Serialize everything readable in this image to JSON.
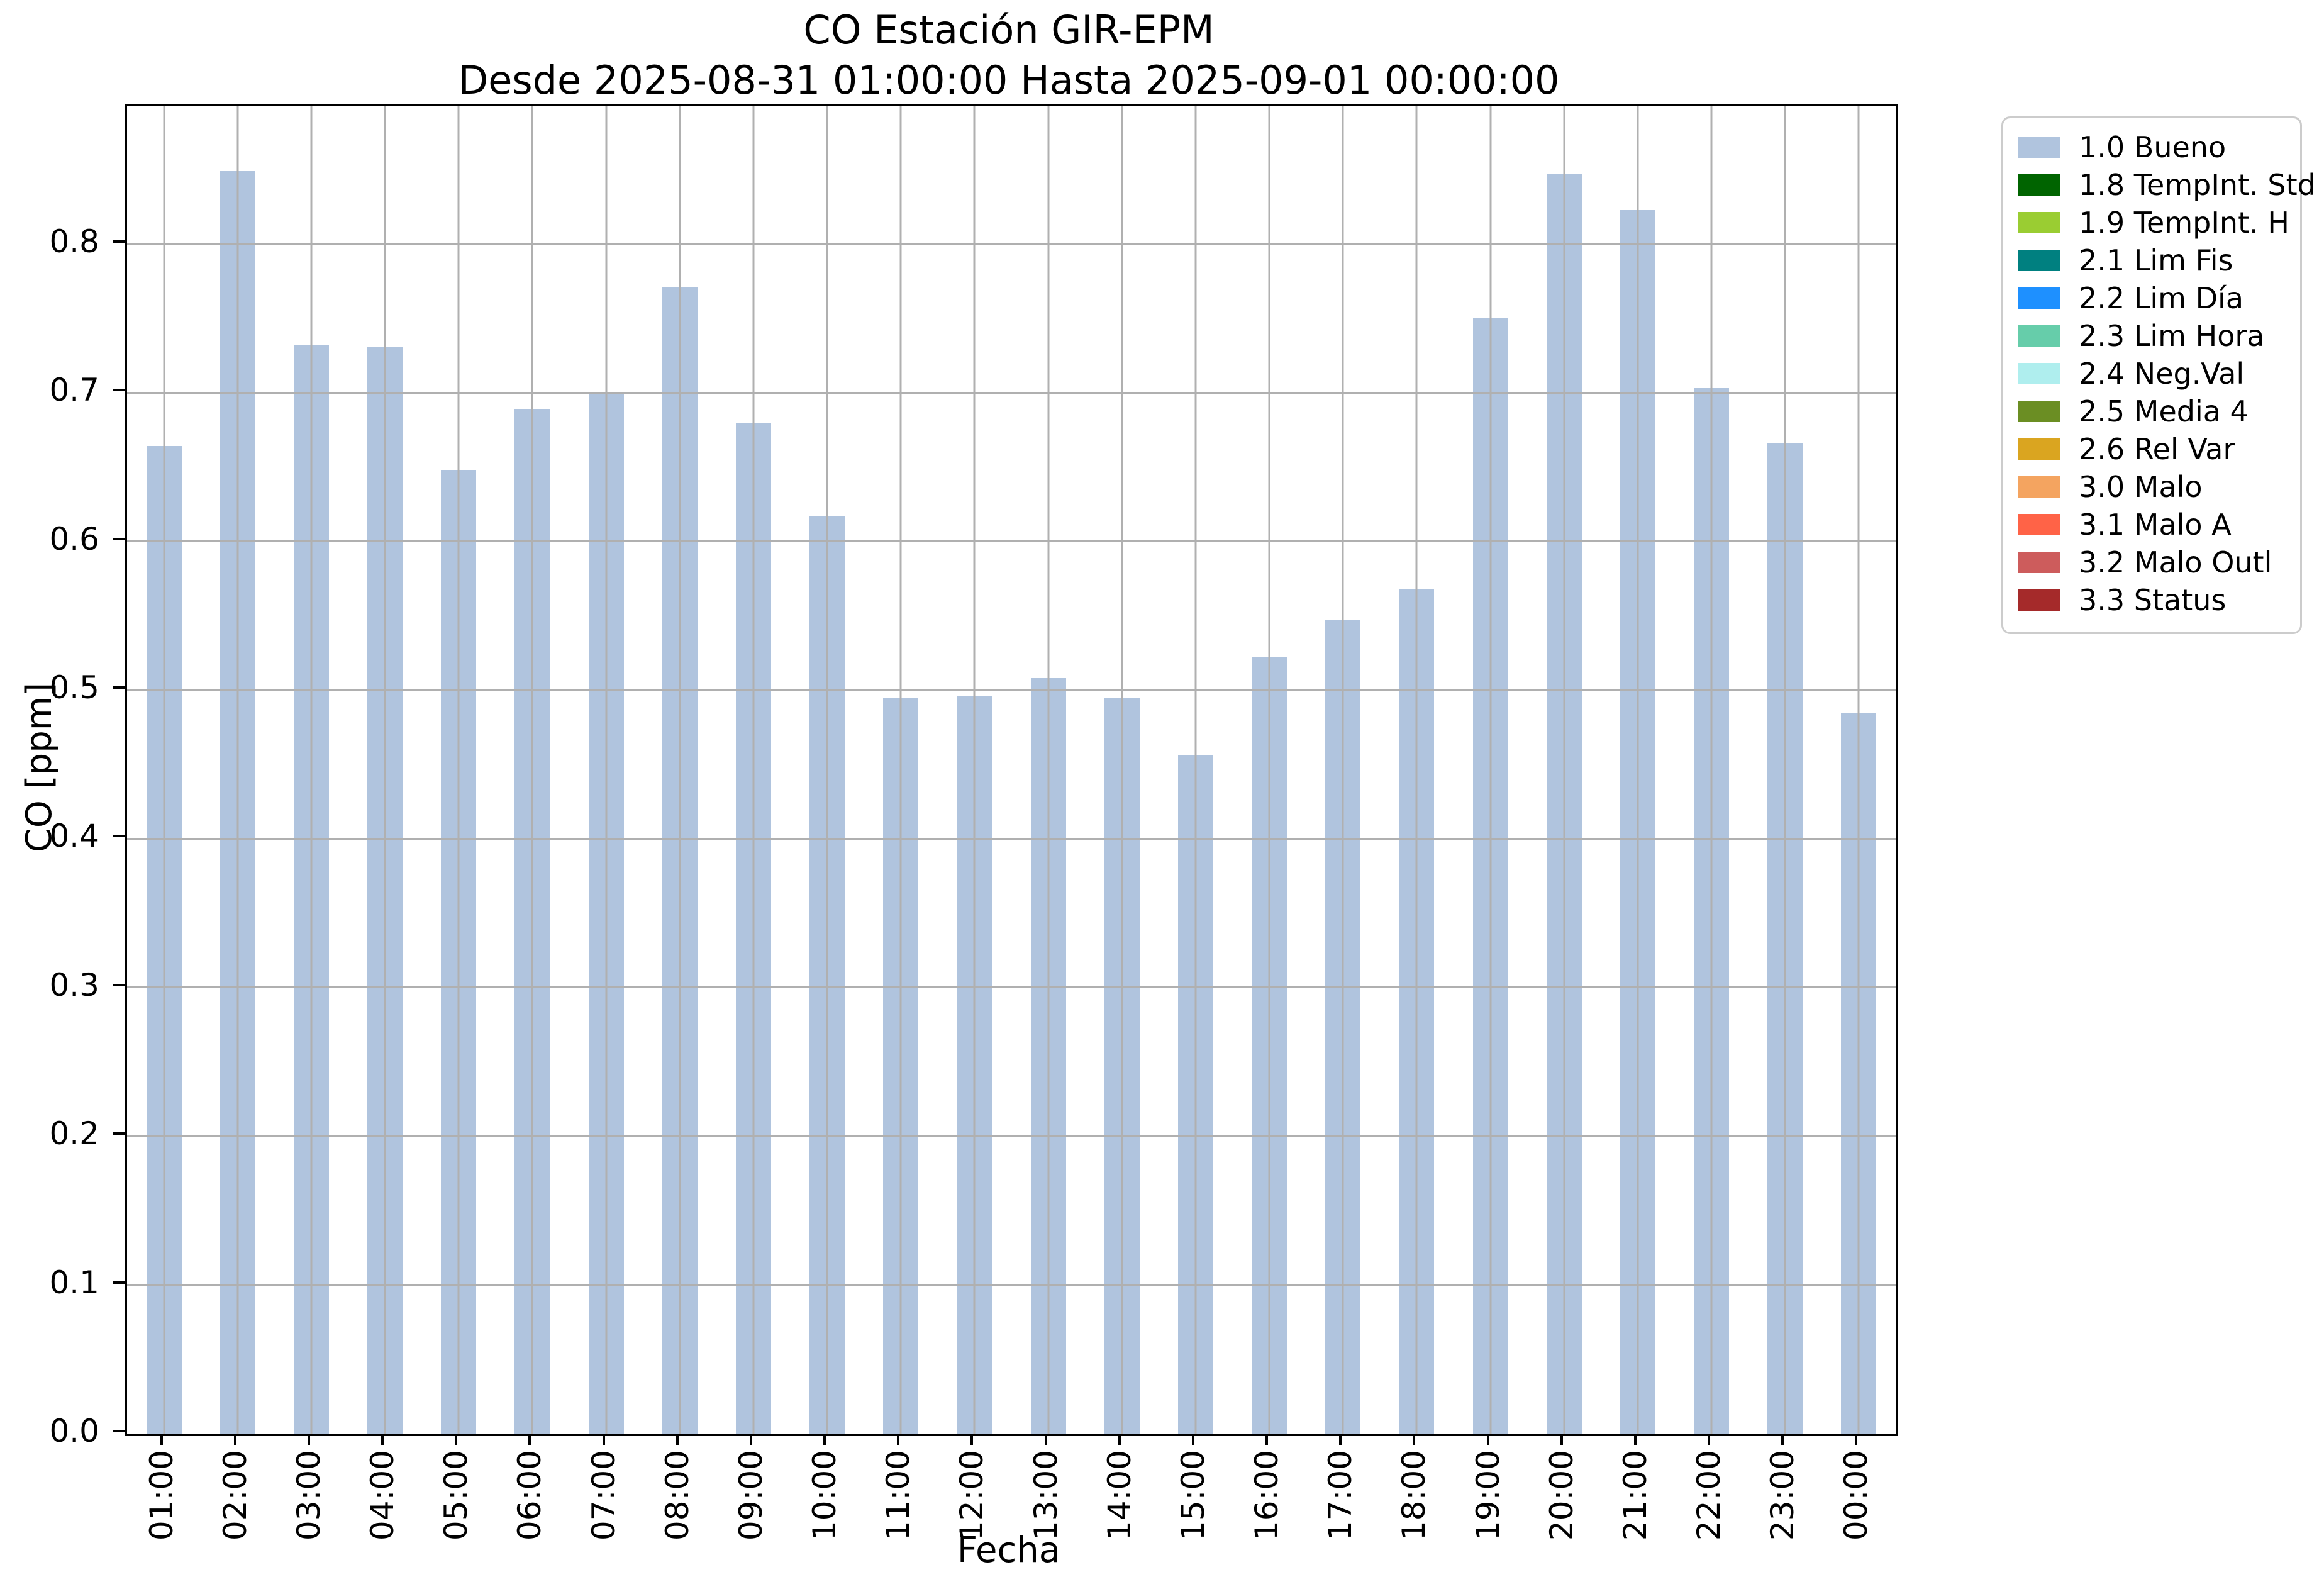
{
  "chart_data": {
    "type": "bar",
    "title": "CO Estación GIR-EPM",
    "subtitle": "Desde 2025-08-31 01:00:00 Hasta 2025-09-01 00:00:00",
    "xlabel": "Fecha",
    "ylabel": "CO [ppm]",
    "ylim": [
      0,
      0.8926
    ],
    "yticks": [
      "0.0",
      "0.1",
      "0.2",
      "0.3",
      "0.4",
      "0.5",
      "0.6",
      "0.7",
      "0.8"
    ],
    "grid": true,
    "legend_position": "right",
    "categories": [
      "01:00",
      "02:00",
      "03:00",
      "04:00",
      "05:00",
      "06:00",
      "07:00",
      "08:00",
      "09:00",
      "10:00",
      "11:00",
      "12:00",
      "13:00",
      "14:00",
      "15:00",
      "16:00",
      "17:00",
      "18:00",
      "19:00",
      "20:00",
      "21:00",
      "22:00",
      "23:00",
      "00:00"
    ],
    "series": [
      {
        "name": "1.0 Bueno",
        "color": "#b0c4de",
        "values": [
          0.664,
          0.849,
          0.732,
          0.731,
          0.648,
          0.689,
          0.7,
          0.771,
          0.68,
          0.617,
          0.495,
          0.496,
          0.508,
          0.495,
          0.456,
          0.522,
          0.547,
          0.568,
          0.75,
          0.847,
          0.823,
          0.703,
          0.666,
          0.485
        ]
      }
    ],
    "legend": [
      {
        "label": "1.0 Bueno",
        "color": "#b0c4de"
      },
      {
        "label": "1.8 TempInt. Std",
        "color": "#006400"
      },
      {
        "label": "1.9 TempInt. H",
        "color": "#9acd32"
      },
      {
        "label": "2.1 Lim Fis",
        "color": "#008080"
      },
      {
        "label": "2.2 Lim Día",
        "color": "#1e90ff"
      },
      {
        "label": "2.3 Lim Hora",
        "color": "#66cdaa"
      },
      {
        "label": "2.4 Neg.Val",
        "color": "#afeeee"
      },
      {
        "label": "2.5 Media 4",
        "color": "#6b8e23"
      },
      {
        "label": "2.6 Rel Var",
        "color": "#daa520"
      },
      {
        "label": "3.0 Malo",
        "color": "#f4a460"
      },
      {
        "label": "3.1 Malo A",
        "color": "#ff6347"
      },
      {
        "label": "3.2 Malo Outl",
        "color": "#cd5c5c"
      },
      {
        "label": "3.3 Status",
        "color": "#a52a2a"
      }
    ],
    "grid_color": "#b0b0b0",
    "spine_color": "#000000",
    "background": "#ffffff"
  }
}
